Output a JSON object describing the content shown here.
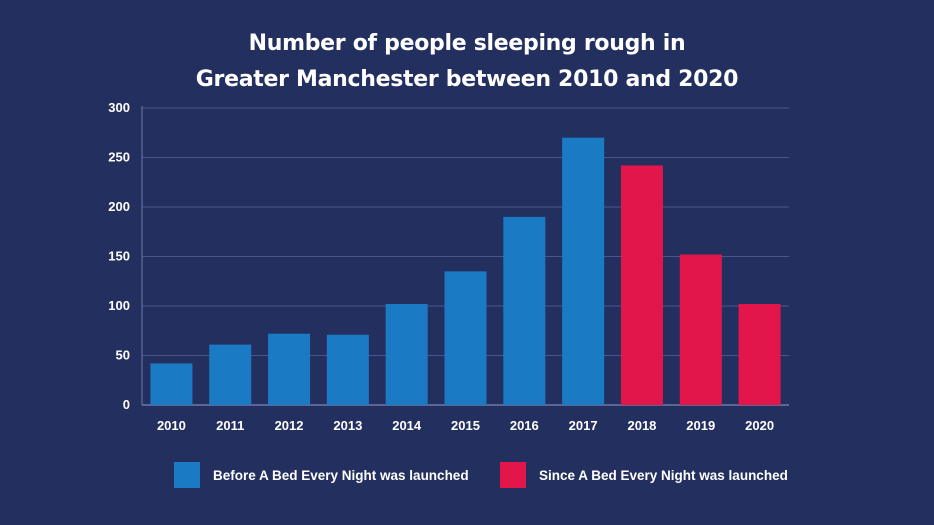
{
  "chart_data": {
    "type": "bar",
    "title_lines": [
      "Number of people sleeping rough in",
      "Greater Manchester between 2010 and 2020"
    ],
    "xlabel": "",
    "ylabel": "",
    "ylim": [
      0,
      300
    ],
    "yticks": [
      0,
      50,
      100,
      150,
      200,
      250,
      300
    ],
    "grid": true,
    "legend_position": "bottom",
    "categories": [
      "2010",
      "2011",
      "2012",
      "2013",
      "2014",
      "2015",
      "2016",
      "2017",
      "2018",
      "2019",
      "2020"
    ],
    "values": [
      42,
      61,
      72,
      71,
      102,
      135,
      190,
      270,
      242,
      152,
      102
    ],
    "groups": [
      {
        "name": "Before A Bed Every Night was launched",
        "color": "#1a7ac4",
        "categories": [
          "2010",
          "2011",
          "2012",
          "2013",
          "2014",
          "2015",
          "2016",
          "2017"
        ]
      },
      {
        "name": "Since A Bed Every Night was launched",
        "color": "#e3164b",
        "categories": [
          "2018",
          "2019",
          "2020"
        ]
      }
    ]
  },
  "colors": {
    "background": "#23305f",
    "gridline": "#4a568a",
    "axis": "#6e79a6"
  }
}
